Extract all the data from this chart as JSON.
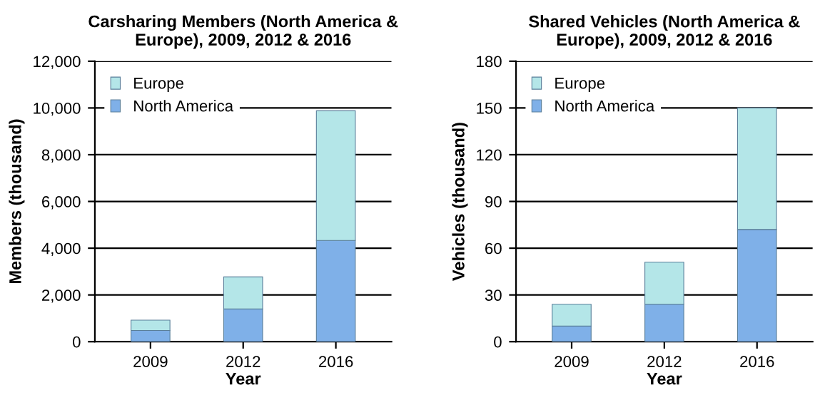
{
  "chart_data": [
    {
      "type": "bar",
      "title": "Carsharing Members (North America &\nEurope), 2009, 2012 & 2016",
      "xlabel": "Year",
      "ylabel": "Members (thousand)",
      "categories": [
        "2009",
        "2012",
        "2016"
      ],
      "stacked": true,
      "series": [
        {
          "name": "North America",
          "color": "#7fb0e8",
          "values": [
            480,
            1400,
            4330
          ]
        },
        {
          "name": "Europe",
          "color": "#b4e6e8",
          "values": [
            440,
            1370,
            5550
          ]
        }
      ],
      "ylim": [
        0,
        12000
      ],
      "yticks": [
        {
          "value": 0,
          "label": "0"
        },
        {
          "value": 2000,
          "label": "2,000"
        },
        {
          "value": 4000,
          "label": "4,000"
        },
        {
          "value": 6000,
          "label": "6,000"
        },
        {
          "value": 8000,
          "label": "8,000"
        },
        {
          "value": 10000,
          "label": "10,000"
        },
        {
          "value": 12000,
          "label": "12,000"
        }
      ],
      "grid": "y",
      "legend": "top left"
    },
    {
      "type": "bar",
      "title": "Shared Vehicles (North America &\nEurope), 2009, 2012 & 2016",
      "xlabel": "Year",
      "ylabel": "Vehicles (thousand)",
      "categories": [
        "2009",
        "2012",
        "2016"
      ],
      "stacked": true,
      "series": [
        {
          "name": "North America",
          "color": "#7fb0e8",
          "values": [
            10,
            24,
            72
          ]
        },
        {
          "name": "Europe",
          "color": "#b4e6e8",
          "values": [
            14,
            27,
            78
          ]
        }
      ],
      "ylim": [
        0,
        180
      ],
      "yticks": [
        0,
        30,
        60,
        90,
        120,
        150,
        180
      ],
      "grid": "y",
      "legend": "top left"
    }
  ]
}
